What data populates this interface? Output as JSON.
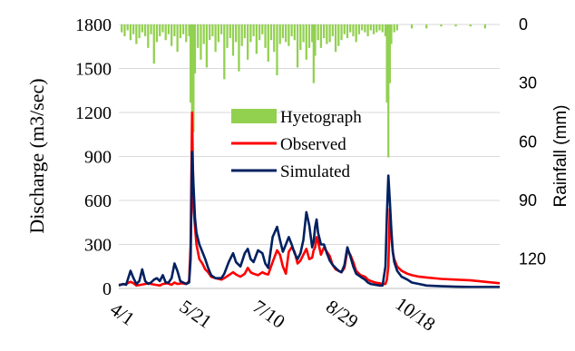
{
  "chart_data": {
    "type": "line",
    "ylabel": "Discharge (m3/sec)",
    "y2label": "Rainfall (mm)",
    "ylim": [
      0,
      1800
    ],
    "y2lim": [
      0,
      135
    ],
    "y2_inverted": true,
    "yticks": [
      "0",
      "300",
      "600",
      "900",
      "1200",
      "1500",
      "1800"
    ],
    "y2ticks": [
      "0",
      "30",
      "60",
      "90",
      "120"
    ],
    "xlim": [
      0,
      260
    ],
    "xticks": [
      {
        "day": 0,
        "label": "4/1"
      },
      {
        "day": 50,
        "label": "5/21"
      },
      {
        "day": 100,
        "label": "7/10"
      },
      {
        "day": 150,
        "label": "8/29"
      },
      {
        "day": 200,
        "label": "10/18"
      }
    ],
    "grid": true,
    "legend": {
      "placement": "center",
      "entries": [
        "Hyetograph",
        "Observed",
        "Simulated"
      ]
    },
    "colors": {
      "hyetograph": "#92d050",
      "observed": "#ff0000",
      "simulated": "#002060"
    },
    "series": [
      {
        "name": "Observed",
        "x": [
          0,
          5,
          8,
          10,
          12,
          15,
          18,
          20,
          22,
          25,
          28,
          30,
          33,
          36,
          38,
          40,
          43,
          46,
          48,
          49,
          50,
          51,
          52,
          53,
          55,
          57,
          59,
          61,
          63,
          66,
          70,
          72,
          75,
          78,
          80,
          83,
          86,
          88,
          90,
          92,
          95,
          98,
          100,
          102,
          105,
          108,
          110,
          112,
          114,
          116,
          118,
          120,
          122,
          124,
          126,
          128,
          130,
          132,
          133,
          134,
          135,
          136,
          138,
          140,
          142,
          144,
          146,
          148,
          150,
          152,
          154,
          156,
          158,
          160,
          162,
          165,
          168,
          170,
          172,
          175,
          178,
          180,
          182,
          183,
          184,
          185,
          186,
          187,
          188,
          190,
          193,
          197,
          200,
          205,
          210,
          220,
          230,
          240,
          250,
          260
        ],
        "y": [
          25,
          30,
          45,
          35,
          20,
          25,
          30,
          35,
          30,
          25,
          20,
          30,
          35,
          25,
          40,
          30,
          35,
          30,
          50,
          300,
          1200,
          550,
          420,
          300,
          200,
          170,
          130,
          110,
          80,
          70,
          60,
          70,
          90,
          110,
          95,
          80,
          100,
          140,
          110,
          100,
          90,
          110,
          100,
          95,
          180,
          260,
          230,
          150,
          100,
          250,
          280,
          250,
          170,
          190,
          230,
          270,
          200,
          210,
          260,
          280,
          350,
          320,
          230,
          280,
          250,
          220,
          160,
          130,
          120,
          110,
          140,
          260,
          230,
          180,
          120,
          90,
          80,
          60,
          50,
          40,
          35,
          30,
          30,
          60,
          150,
          540,
          350,
          250,
          200,
          150,
          120,
          100,
          90,
          80,
          75,
          65,
          60,
          55,
          45,
          35
        ]
      },
      {
        "name": "Simulated",
        "x": [
          0,
          3,
          5,
          8,
          10,
          12,
          14,
          16,
          18,
          20,
          22,
          24,
          26,
          28,
          30,
          32,
          34,
          36,
          38,
          40,
          42,
          44,
          46,
          48,
          49,
          50,
          51,
          52,
          53,
          55,
          57,
          59,
          61,
          63,
          66,
          70,
          72,
          75,
          78,
          80,
          83,
          86,
          88,
          90,
          92,
          95,
          98,
          100,
          102,
          105,
          108,
          110,
          112,
          114,
          116,
          118,
          120,
          122,
          124,
          126,
          128,
          130,
          132,
          133,
          134,
          135,
          136,
          138,
          140,
          142,
          144,
          146,
          148,
          150,
          152,
          154,
          156,
          158,
          160,
          162,
          165,
          168,
          170,
          172,
          175,
          178,
          180,
          182,
          183,
          184,
          185,
          186,
          187,
          188,
          190,
          193,
          197,
          200,
          205,
          210,
          220,
          230,
          240,
          250,
          260
        ],
        "y": [
          20,
          30,
          25,
          120,
          70,
          30,
          50,
          130,
          50,
          30,
          40,
          60,
          70,
          50,
          90,
          40,
          40,
          70,
          170,
          120,
          50,
          40,
          30,
          40,
          200,
          930,
          700,
          480,
          380,
          300,
          250,
          200,
          140,
          90,
          70,
          70,
          100,
          180,
          240,
          180,
          150,
          240,
          270,
          200,
          180,
          260,
          240,
          170,
          140,
          350,
          420,
          330,
          250,
          300,
          350,
          300,
          240,
          200,
          240,
          330,
          520,
          430,
          280,
          320,
          420,
          470,
          380,
          300,
          300,
          240,
          190,
          160,
          140,
          120,
          110,
          160,
          280,
          220,
          150,
          100,
          80,
          60,
          40,
          30,
          25,
          20,
          20,
          150,
          500,
          770,
          600,
          400,
          250,
          180,
          120,
          80,
          60,
          40,
          30,
          20,
          15,
          12,
          10,
          10,
          10
        ]
      },
      {
        "name": "Hyetograph",
        "x": [
          2,
          4,
          6,
          8,
          10,
          12,
          14,
          16,
          18,
          20,
          22,
          24,
          26,
          28,
          30,
          32,
          34,
          36,
          38,
          40,
          42,
          44,
          46,
          48,
          49,
          50,
          51,
          52,
          54,
          56,
          58,
          60,
          62,
          64,
          66,
          68,
          70,
          72,
          74,
          76,
          78,
          80,
          82,
          84,
          86,
          88,
          90,
          92,
          94,
          96,
          98,
          100,
          102,
          104,
          106,
          108,
          110,
          112,
          114,
          116,
          118,
          120,
          122,
          124,
          126,
          128,
          130,
          132,
          133,
          134,
          136,
          138,
          140,
          142,
          144,
          146,
          148,
          150,
          152,
          154,
          156,
          158,
          160,
          162,
          164,
          166,
          168,
          170,
          172,
          174,
          176,
          178,
          180,
          182,
          183,
          184,
          185,
          186,
          188,
          190,
          200,
          210,
          220,
          230,
          240,
          250
        ],
        "y": [
          4,
          6,
          3,
          8,
          5,
          10,
          7,
          4,
          6,
          12,
          5,
          20,
          9,
          6,
          4,
          8,
          5,
          11,
          6,
          14,
          7,
          5,
          9,
          6,
          40,
          80,
          55,
          25,
          12,
          18,
          10,
          22,
          8,
          6,
          14,
          9,
          5,
          28,
          12,
          7,
          16,
          9,
          24,
          11,
          7,
          18,
          9,
          6,
          15,
          8,
          5,
          12,
          19,
          8,
          14,
          26,
          10,
          7,
          9,
          11,
          6,
          8,
          22,
          13,
          9,
          18,
          12,
          9,
          30,
          16,
          8,
          12,
          7,
          10,
          9,
          6,
          14,
          11,
          8,
          5,
          7,
          4,
          6,
          9,
          5,
          3,
          4,
          6,
          3,
          5,
          4,
          3,
          4,
          6,
          40,
          68,
          30,
          10,
          4,
          3,
          2,
          2,
          1,
          1,
          1,
          2
        ]
      }
    ]
  }
}
